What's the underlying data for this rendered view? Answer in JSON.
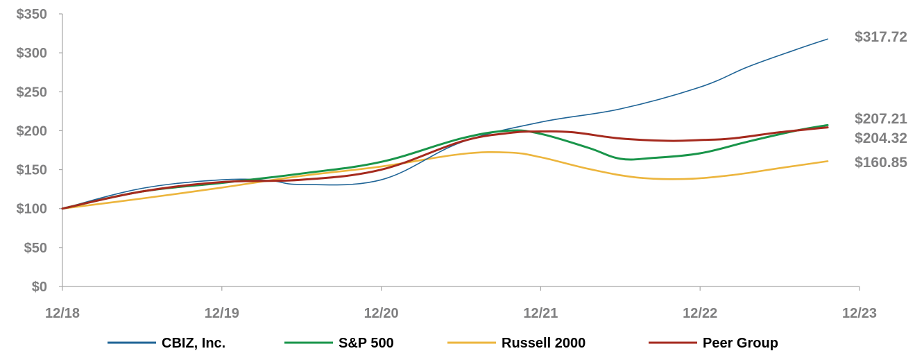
{
  "chart_data": {
    "type": "line",
    "title": "",
    "xlabel": "",
    "ylabel": "",
    "x_ticks": [
      "12/18",
      "12/19",
      "12/20",
      "12/21",
      "12/22",
      "12/23"
    ],
    "y_ticks": [
      "$0",
      "$50",
      "$100",
      "$150",
      "$200",
      "$250",
      "$300",
      "$350"
    ],
    "ylim": [
      0,
      350
    ],
    "grid": false,
    "legend_position": "bottom",
    "series": [
      {
        "name": "CBIZ, Inc.",
        "color": "#1f6496",
        "x": [
          0,
          0.5,
          1,
          1.3,
          1.5,
          2,
          2.5,
          3,
          3.5,
          4,
          4.3,
          4.6,
          4.8
        ],
        "values": [
          100,
          126,
          137,
          136,
          131,
          137,
          185,
          211,
          228,
          256,
          282,
          304,
          317.72
        ]
      },
      {
        "name": "S&P 500",
        "color": "#19954a",
        "x": [
          0,
          0.5,
          1,
          1.5,
          2,
          2.5,
          2.8,
          3,
          3.3,
          3.5,
          3.7,
          4,
          4.3,
          4.6,
          4.8
        ],
        "values": [
          100,
          122,
          133,
          145,
          160,
          190,
          200,
          196,
          178,
          164,
          165,
          171,
          186,
          200,
          207.21
        ]
      },
      {
        "name": "Russell 2000",
        "color": "#ecb53d",
        "x": [
          0,
          0.5,
          1,
          1.5,
          2,
          2.5,
          2.8,
          3,
          3.3,
          3.6,
          3.9,
          4.2,
          4.5,
          4.8
        ],
        "values": [
          100,
          113,
          127,
          142,
          154,
          170,
          172,
          166,
          151,
          140,
          138,
          143,
          152,
          160.85
        ]
      },
      {
        "name": "Peer Group",
        "color": "#a52a1e",
        "x": [
          0,
          0.5,
          1,
          1.5,
          2,
          2.5,
          2.8,
          3,
          3.2,
          3.5,
          3.8,
          4,
          4.2,
          4.5,
          4.8
        ],
        "values": [
          100,
          122,
          134,
          137,
          150,
          186,
          197,
          199,
          198,
          190,
          187,
          188,
          190,
          198,
          204.32
        ]
      }
    ],
    "end_labels": [
      "$317.72",
      "$207.21",
      "$204.32",
      "$160.85"
    ]
  }
}
